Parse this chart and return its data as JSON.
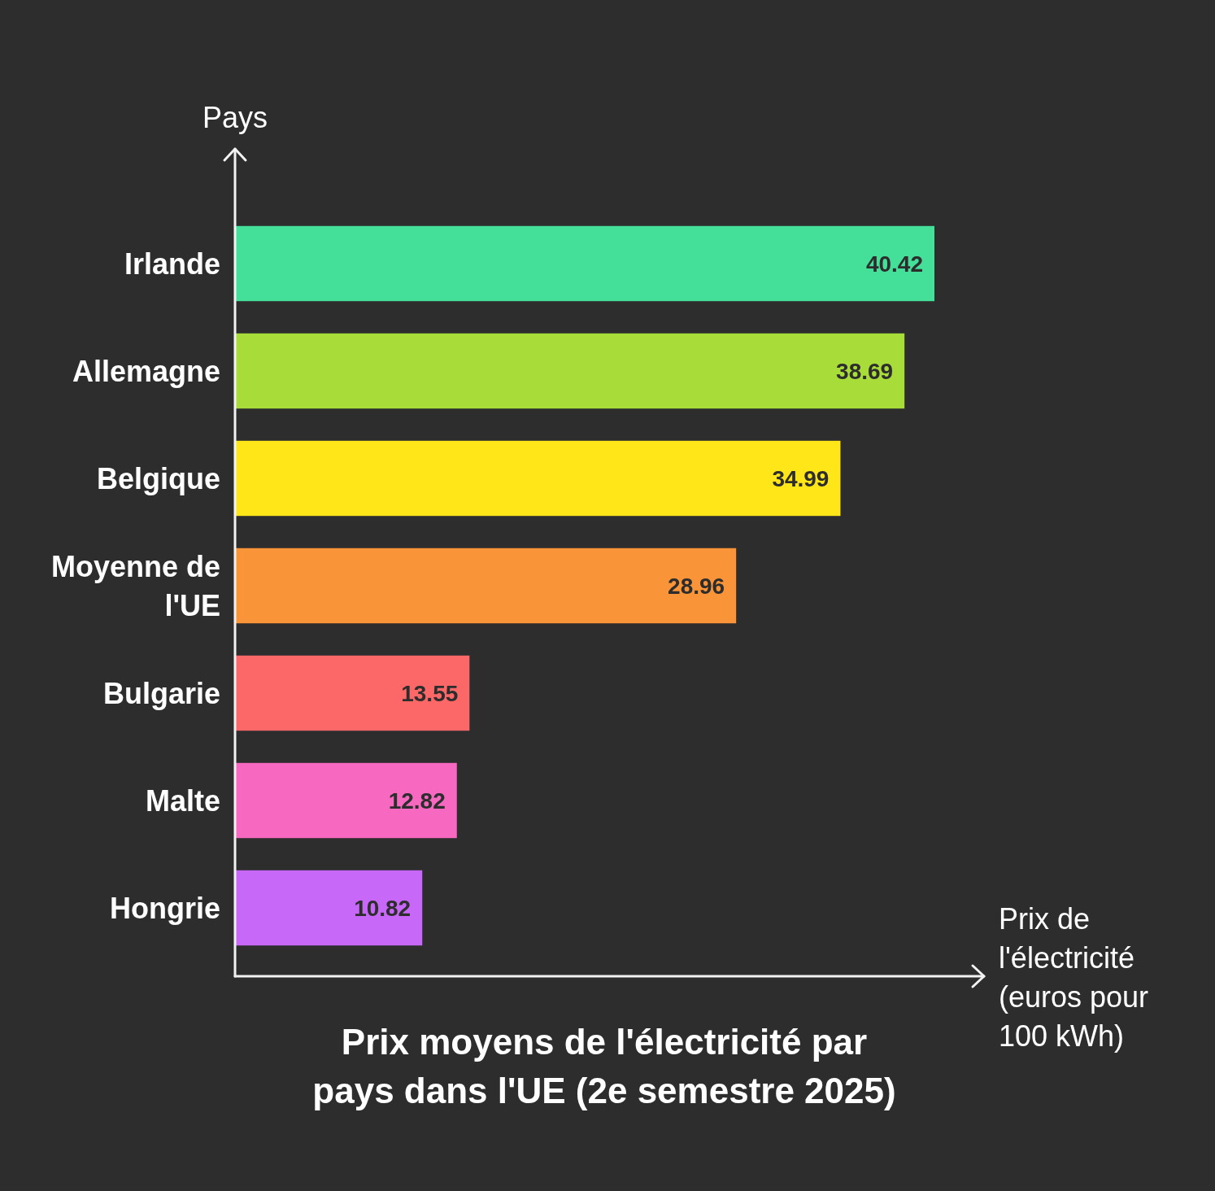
{
  "chart_data": {
    "type": "bar",
    "orientation": "horizontal",
    "title": "Prix moyens de l'électricité par pays dans l'UE (2e semestre 2025)",
    "xlabel": "Prix de l'électricité (euros pour 100 kWh)",
    "ylabel": "Pays",
    "categories": [
      "Irlande",
      "Allemagne",
      "Belgique",
      "Moyenne de l'UE",
      "Bulgarie",
      "Malte",
      "Hongrie"
    ],
    "values": [
      40.42,
      38.69,
      34.99,
      28.96,
      13.55,
      12.82,
      10.82
    ],
    "colors": [
      "#44e09a",
      "#a8dc38",
      "#ffe619",
      "#f99538",
      "#fc6868",
      "#f768c0",
      "#c868f8"
    ],
    "data_labels": true
  }
}
